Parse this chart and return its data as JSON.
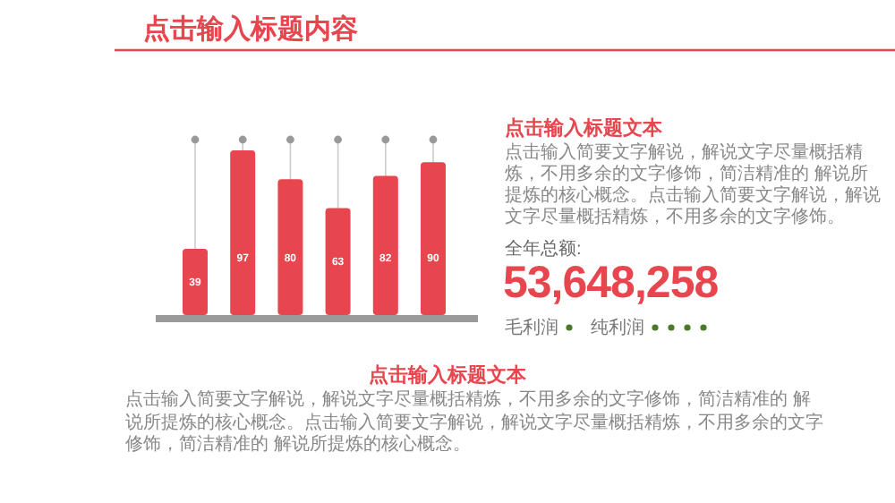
{
  "chart_data": {
    "type": "bar",
    "title": "点击输入标题内容",
    "categories": [
      null,
      null,
      null,
      null,
      null,
      null
    ],
    "values": [
      39,
      97,
      80,
      63,
      82,
      90
    ],
    "color": "#e8464f",
    "data_labels": true,
    "grid": "x",
    "annotations": [
      "点击输入标题文本",
      "点击输入简要文字解说，解说文字尽量概括精炼，不用多余的文字修饰，简洁精准的 解说所提炼的核心概念。点击输入简要文字解说，解说文字尽量概括精炼，不用多余的文字修饰。",
      "全年总额:",
      "53,648,258",
      "毛利润",
      "纯利润",
      "点击输入标题文本",
      "点击输入简要文字解说，解说文字尽量概括精炼，不用多余的文字修饰，简洁精准的 解说所提炼的核心概念。点击输入简要文字解说，解说文字尽量概括精炼，不用多余的文字修饰，简洁精准的 解说所提炼的核心概念。"
    ]
  }
}
